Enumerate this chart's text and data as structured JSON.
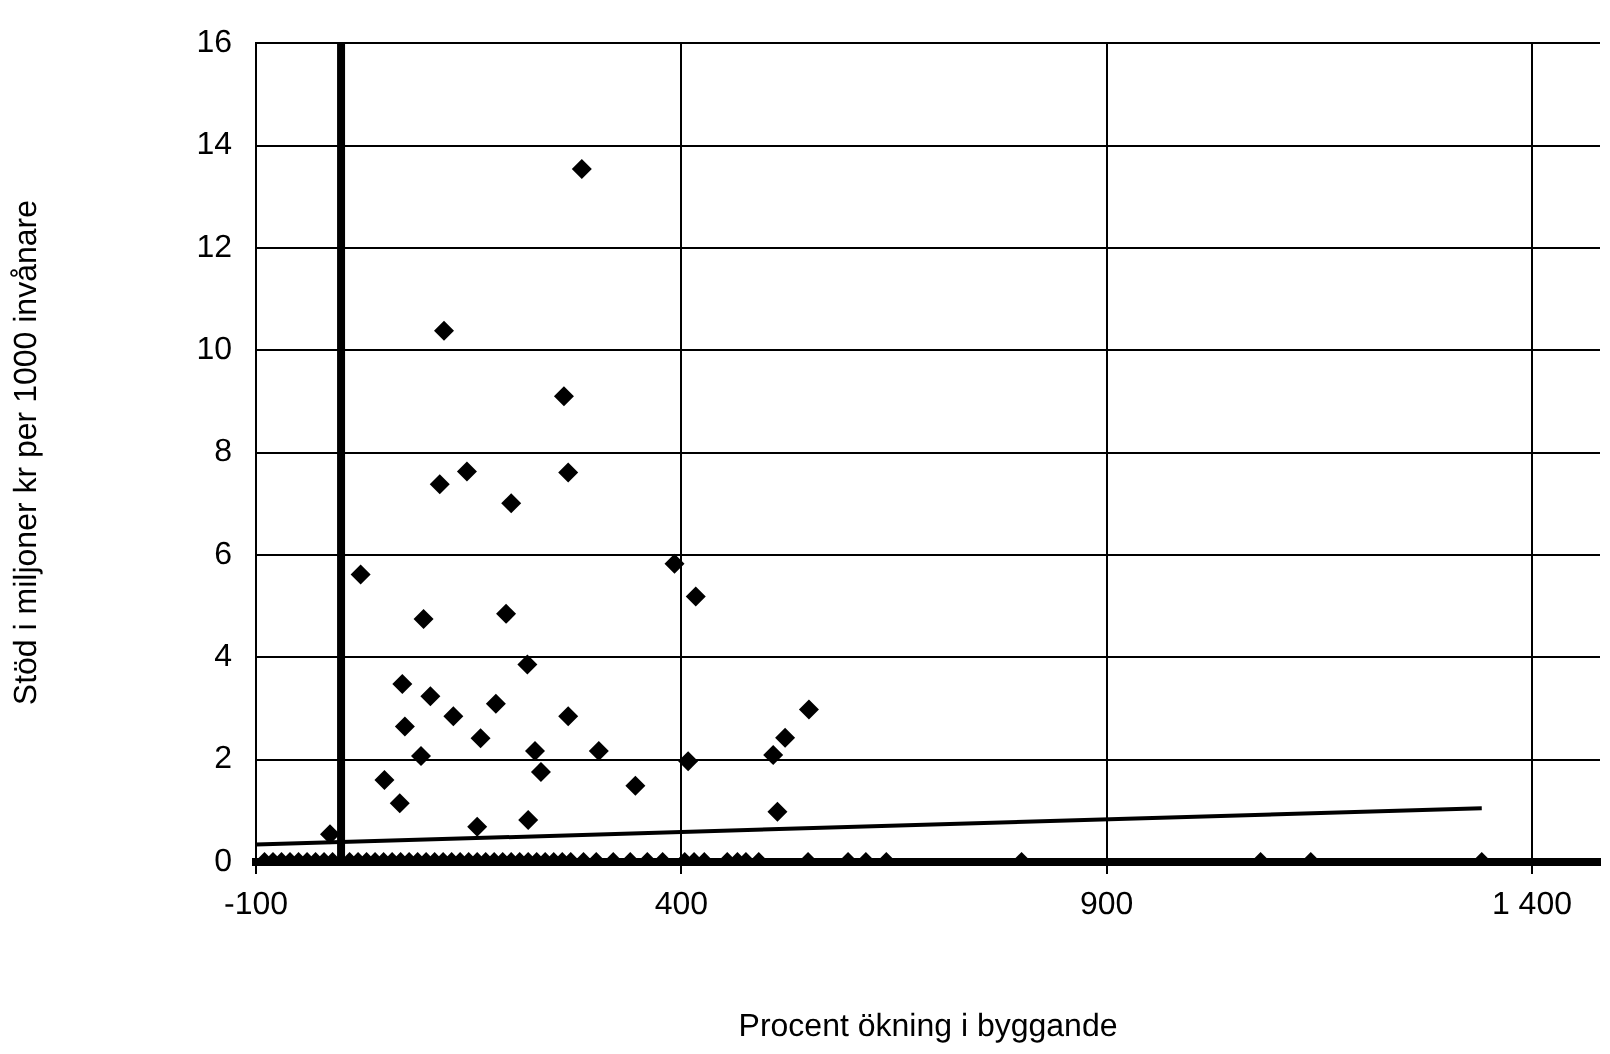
{
  "chart_data": {
    "type": "scatter",
    "xlabel": "Procent ökning i byggande",
    "ylabel": "Stöd i miljoner kr per 1000 invånare",
    "grid": true,
    "xlim": [
      -100,
      1480
    ],
    "ylim": [
      0,
      16
    ],
    "xticks": [
      -100,
      400,
      900,
      {
        "value": 1400,
        "label": "1 400"
      }
    ],
    "yticks": [
      0,
      2,
      4,
      6,
      8,
      10,
      12,
      14,
      16
    ],
    "ref_lines": [
      {
        "axis": "x",
        "value": 0,
        "color": "#000000"
      }
    ],
    "series": [
      {
        "color": "#000000",
        "marker": "diamond",
        "x": [
          283,
          121,
          262,
          116,
          148,
          267,
          200,
          23,
          392,
          417,
          97,
          194,
          219,
          72,
          105,
          132,
          182,
          267,
          75,
          164,
          228,
          303,
          94,
          408,
          51,
          235,
          346,
          69,
          160,
          220,
          -13,
          508,
          522,
          550,
          513,
          -90,
          -80,
          -70,
          -60,
          -50,
          -40,
          -30,
          -20,
          -10,
          10,
          20,
          30,
          40,
          50,
          60,
          70,
          80,
          90,
          100,
          110,
          120,
          130,
          140,
          150,
          160,
          170,
          180,
          190,
          200,
          210,
          220,
          230,
          240,
          250,
          260,
          270,
          285,
          300,
          320,
          340,
          360,
          378,
          404,
          415,
          427,
          454,
          466,
          476,
          491,
          549,
          596,
          617,
          641,
          800,
          1081,
          1140,
          1341
        ],
        "values": [
          13.54,
          10.38,
          9.1,
          7.38,
          7.63,
          7.61,
          7.01,
          5.62,
          5.83,
          5.19,
          4.75,
          4.85,
          3.86,
          3.48,
          3.24,
          2.85,
          3.09,
          2.85,
          2.65,
          2.42,
          2.17,
          2.17,
          2.07,
          1.97,
          1.6,
          1.76,
          1.49,
          1.15,
          0.69,
          0.82,
          0.54,
          2.09,
          2.43,
          2.98,
          0.98,
          0,
          0,
          0,
          0,
          0,
          0,
          0,
          0,
          0,
          0,
          0,
          0,
          0,
          0,
          0,
          0,
          0,
          0,
          0,
          0,
          0,
          0,
          0,
          0,
          0,
          0,
          0,
          0,
          0,
          0,
          0,
          0,
          0,
          0,
          0,
          0,
          0,
          0,
          0,
          0,
          0,
          0,
          0,
          0,
          0,
          0,
          0,
          0,
          0,
          0,
          0,
          0,
          0,
          0,
          0,
          0,
          0
        ]
      },
      {
        "type": "line",
        "color": "#000000",
        "marker": "none",
        "x": [
          -100,
          1341
        ],
        "values": [
          0.34,
          1.05
        ]
      }
    ]
  }
}
